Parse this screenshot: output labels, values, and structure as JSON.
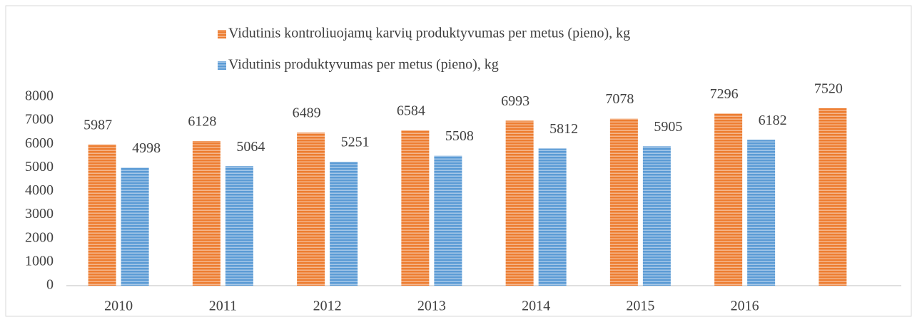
{
  "chart_data": {
    "type": "bar",
    "categories": [
      "2010",
      "2011",
      "2012",
      "2013",
      "2014",
      "2015",
      "2016",
      null
    ],
    "series": [
      {
        "name": "Vidutinis kontroliuojamų karvių produktyvumas per metus (pieno), kg",
        "color": "#ed7d31",
        "values": [
          5987,
          6128,
          6489,
          6584,
          6993,
          7078,
          7296,
          7520
        ]
      },
      {
        "name": "Vidutinis produktyvumas per metus (pieno), kg",
        "color": "#5b9bd5",
        "values": [
          4998,
          5064,
          5251,
          5508,
          5812,
          5905,
          6182,
          null
        ]
      }
    ],
    "ylim": [
      0,
      8000
    ],
    "yticks": [
      0,
      1000,
      2000,
      3000,
      4000,
      5000,
      6000,
      7000,
      8000
    ],
    "grid": false
  }
}
